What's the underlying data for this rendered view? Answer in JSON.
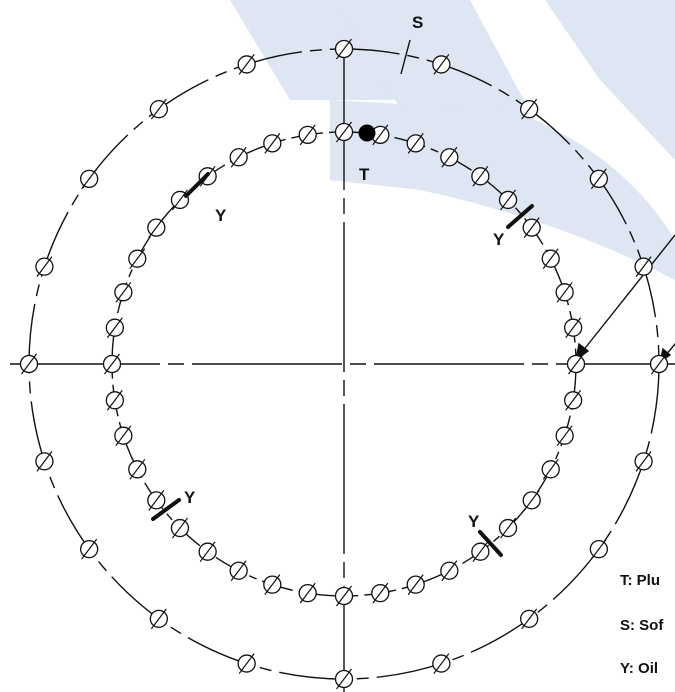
{
  "labels": {
    "T": "T",
    "S": "S",
    "Y": "Y"
  },
  "legend": [
    {
      "text": "T: Plu"
    },
    {
      "text": "S: Sof"
    },
    {
      "text": "Y: Oil"
    }
  ],
  "colors": {
    "watermark": "#dde6f2",
    "line": "#111111",
    "filled_hole": "#000000"
  },
  "icons": {
    "hole": "circle-with-slash",
    "plug_hole": "filled-circle"
  },
  "inner_ring": {
    "hole_count": 40,
    "markers": [
      "T",
      "Y",
      "Y",
      "Y",
      "Y"
    ]
  },
  "outer_ring": {
    "hole_count": 20,
    "markers": [
      "S"
    ]
  }
}
